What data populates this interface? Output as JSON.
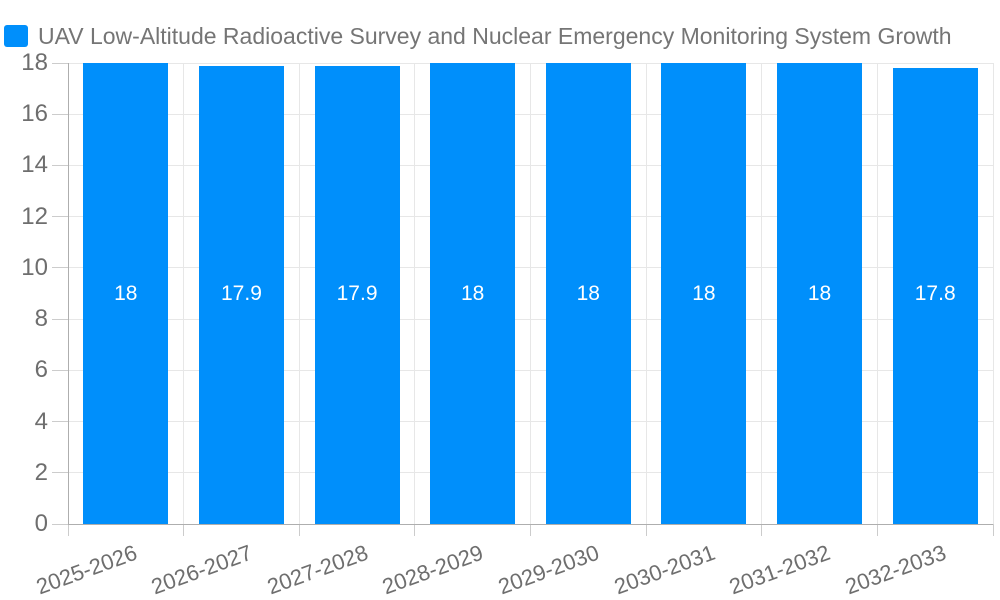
{
  "chart_data": {
    "type": "bar",
    "title": "UAV Low-Altitude Radioactive Survey and Nuclear Emergency Monitoring System Growth",
    "categories": [
      "2025-2026",
      "2026-2027",
      "2027-2028",
      "2028-2029",
      "2029-2030",
      "2030-2031",
      "2031-2032",
      "2032-2033"
    ],
    "values": [
      18,
      17.9,
      17.9,
      18,
      18,
      18,
      18,
      17.8
    ],
    "data_labels": [
      "18",
      "17.9",
      "17.9",
      "18",
      "18",
      "18",
      "18",
      "17.8"
    ],
    "xlabel": "",
    "ylabel": "",
    "ylim": [
      0,
      18
    ],
    "yticks": [
      0,
      2,
      4,
      6,
      8,
      10,
      12,
      14,
      16,
      18
    ],
    "grid": "on",
    "legend_position": "top-left",
    "colors": {
      "bar": "#008ffb",
      "bar_value_label": "#ffffff",
      "legend_text": "#757575",
      "axis_label": "#6e6e6e",
      "gridline": "#e7e7e7",
      "axis_line": "#aeaeae",
      "tick": "#cccccc",
      "background": "#ffffff"
    }
  }
}
